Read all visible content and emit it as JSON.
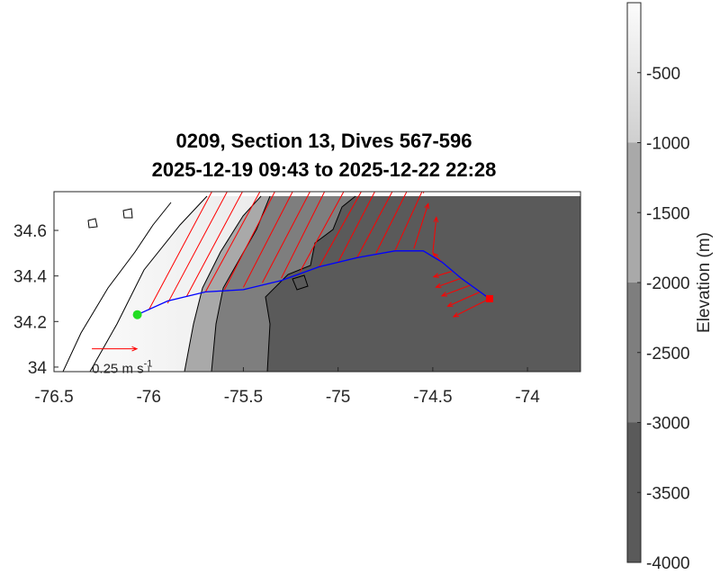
{
  "title": [
    "0209, Section 13, Dives 567-596",
    "2025-12-19 09:43 to 2025-12-22 22:28"
  ],
  "map": {
    "xlim": [
      -76.5,
      -73.72
    ],
    "ylim": [
      33.98,
      34.77
    ],
    "xticks": [
      -76.5,
      -76,
      -75.5,
      -75,
      -74.5,
      -74
    ],
    "yticks": [
      34,
      34.2,
      34.4,
      34.6
    ],
    "track": {
      "color": "#0000ff",
      "lon": [
        -76.06,
        -75.9,
        -75.7,
        -75.5,
        -75.3,
        -75.1,
        -74.9,
        -74.7,
        -74.55,
        -74.45,
        -74.35,
        -74.2
      ],
      "lat": [
        34.23,
        34.29,
        34.33,
        34.34,
        34.38,
        34.44,
        34.48,
        34.51,
        34.51,
        34.46,
        34.39,
        34.3
      ]
    },
    "start": {
      "lon": -76.06,
      "lat": 34.23,
      "color": "#22dd22"
    },
    "end": {
      "lon": -74.2,
      "lat": 34.3,
      "color": "#ff0000"
    },
    "currents": {
      "color": "#ff0000",
      "vectors": [
        {
          "lon": -76.0,
          "lat": 34.25,
          "u": 0.4,
          "v": 0.75
        },
        {
          "lon": -75.9,
          "lat": 34.28,
          "u": 0.4,
          "v": 0.75
        },
        {
          "lon": -75.8,
          "lat": 34.31,
          "u": 0.4,
          "v": 0.75
        },
        {
          "lon": -75.7,
          "lat": 34.33,
          "u": 0.38,
          "v": 0.7
        },
        {
          "lon": -75.6,
          "lat": 34.34,
          "u": 0.36,
          "v": 0.7
        },
        {
          "lon": -75.5,
          "lat": 34.35,
          "u": 0.36,
          "v": 0.7
        },
        {
          "lon": -75.4,
          "lat": 34.37,
          "u": 0.34,
          "v": 0.65
        },
        {
          "lon": -75.3,
          "lat": 34.39,
          "u": 0.3,
          "v": 0.6
        },
        {
          "lon": -75.2,
          "lat": 34.42,
          "u": 0.3,
          "v": 0.55
        },
        {
          "lon": -75.1,
          "lat": 34.44,
          "u": 0.28,
          "v": 0.5
        },
        {
          "lon": -75.0,
          "lat": 34.46,
          "u": 0.26,
          "v": 0.5
        },
        {
          "lon": -74.9,
          "lat": 34.48,
          "u": 0.24,
          "v": 0.45
        },
        {
          "lon": -74.8,
          "lat": 34.5,
          "u": 0.2,
          "v": 0.4
        },
        {
          "lon": -74.7,
          "lat": 34.51,
          "u": 0.16,
          "v": 0.35
        },
        {
          "lon": -74.6,
          "lat": 34.52,
          "u": 0.08,
          "v": 0.25
        },
        {
          "lon": -74.5,
          "lat": 34.5,
          "u": 0.02,
          "v": 0.2
        },
        {
          "lon": -74.45,
          "lat": 34.46,
          "u": -0.05,
          "v": 0.05
        },
        {
          "lon": -74.4,
          "lat": 34.42,
          "u": -0.1,
          "v": -0.03
        },
        {
          "lon": -74.35,
          "lat": 34.39,
          "u": -0.14,
          "v": -0.05
        },
        {
          "lon": -74.3,
          "lat": 34.36,
          "u": -0.16,
          "v": -0.06
        },
        {
          "lon": -74.25,
          "lat": 34.33,
          "u": -0.18,
          "v": -0.08
        },
        {
          "lon": -74.2,
          "lat": 34.3,
          "u": -0.2,
          "v": -0.1
        }
      ]
    },
    "scale": {
      "value": 0.25,
      "label": "0.25 m s",
      "exponent": "-1",
      "lon": -76.3,
      "lat": 34.08
    }
  },
  "colorbar": {
    "label": "Elevation (m)",
    "ylim": [
      -4000,
      0
    ],
    "yticks": [
      -500,
      -1000,
      -1500,
      -2000,
      -2500,
      -3000,
      -3500,
      -4000
    ],
    "bands": [
      {
        "from": -4000,
        "to": -3000,
        "color": "#5a5a5a"
      },
      {
        "from": -3000,
        "to": -2000,
        "color": "#7e7e7e"
      },
      {
        "from": -2000,
        "to": -1000,
        "color": "#a9a9a9"
      },
      {
        "from": -1000,
        "to": 0,
        "color": "#d6d6d6"
      }
    ]
  }
}
